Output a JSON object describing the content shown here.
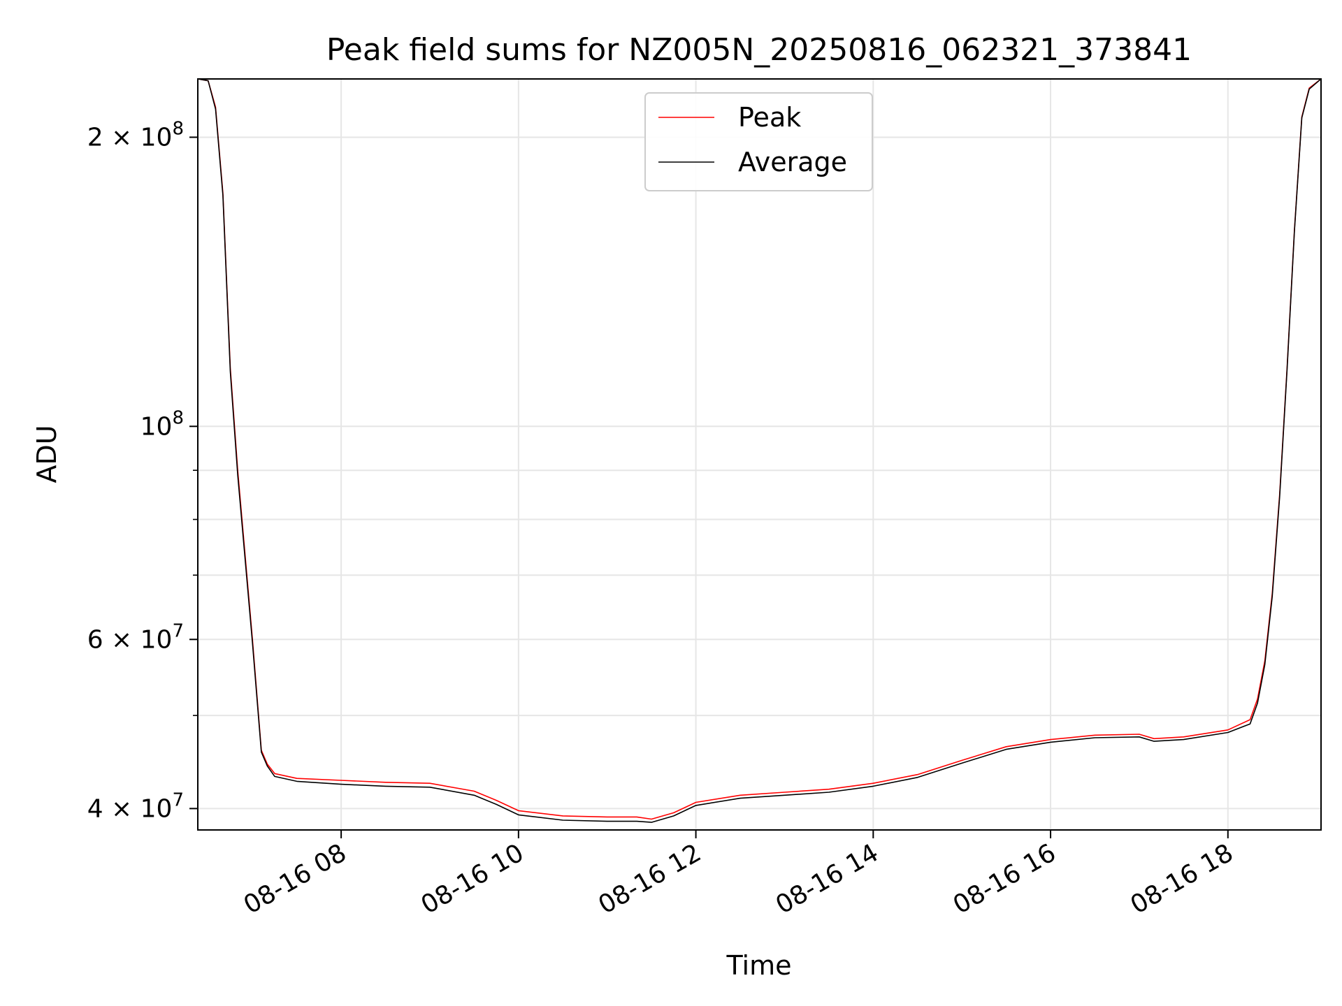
{
  "chart_data": {
    "type": "line",
    "title": "Peak field sums for NZ005N_20250816_062321_373841",
    "xlabel": "Time",
    "ylabel": "ADU",
    "scale_y": "log",
    "grid": true,
    "legend": {
      "placement": "upper-center",
      "entries": [
        "Peak",
        "Average"
      ]
    },
    "xlim": [
      "2025-08-16 06:23",
      "2025-08-16 19:03"
    ],
    "ylim": [
      38000000,
      230000000
    ],
    "x_ticks": [
      {
        "value": "2025-08-16 08:00",
        "label": "08-16 08"
      },
      {
        "value": "2025-08-16 10:00",
        "label": "08-16 10"
      },
      {
        "value": "2025-08-16 12:00",
        "label": "08-16 12"
      },
      {
        "value": "2025-08-16 14:00",
        "label": "08-16 14"
      },
      {
        "value": "2025-08-16 16:00",
        "label": "08-16 16"
      },
      {
        "value": "2025-08-16 18:00",
        "label": "08-16 18"
      }
    ],
    "y_major_ticks": [
      {
        "value": 40000000,
        "base": "4 × 10",
        "exp": "7"
      },
      {
        "value": 60000000,
        "base": "6 × 10",
        "exp": "7"
      },
      {
        "value": 100000000,
        "base": "10",
        "exp": "8"
      },
      {
        "value": 200000000,
        "base": "2 × 10",
        "exp": "8"
      }
    ],
    "y_minor_ticks": [
      50000000,
      70000000,
      80000000,
      90000000
    ],
    "series": [
      {
        "name": "Peak",
        "color": "#ff0000",
        "x": [
          "2025-08-16 06:23",
          "2025-08-16 06:30",
          "2025-08-16 06:35",
          "2025-08-16 06:40",
          "2025-08-16 06:45",
          "2025-08-16 06:50",
          "2025-08-16 07:00",
          "2025-08-16 07:06",
          "2025-08-16 07:10",
          "2025-08-16 07:15",
          "2025-08-16 07:30",
          "2025-08-16 08:00",
          "2025-08-16 08:30",
          "2025-08-16 09:00",
          "2025-08-16 09:30",
          "2025-08-16 09:45",
          "2025-08-16 10:00",
          "2025-08-16 10:30",
          "2025-08-16 11:00",
          "2025-08-16 11:20",
          "2025-08-16 11:30",
          "2025-08-16 11:45",
          "2025-08-16 12:00",
          "2025-08-16 12:30",
          "2025-08-16 13:00",
          "2025-08-16 13:30",
          "2025-08-16 14:00",
          "2025-08-16 14:30",
          "2025-08-16 15:00",
          "2025-08-16 15:30",
          "2025-08-16 16:00",
          "2025-08-16 16:30",
          "2025-08-16 17:00",
          "2025-08-16 17:10",
          "2025-08-16 17:30",
          "2025-08-16 18:00",
          "2025-08-16 18:15",
          "2025-08-16 18:20",
          "2025-08-16 18:25",
          "2025-08-16 18:30",
          "2025-08-16 18:35",
          "2025-08-16 18:40",
          "2025-08-16 18:45",
          "2025-08-16 18:50",
          "2025-08-16 18:55",
          "2025-08-16 19:03"
        ],
        "values": [
          230000000,
          229000000,
          215000000,
          175000000,
          115000000,
          90000000,
          60000000,
          46000000,
          44500000,
          43500000,
          43000000,
          42800000,
          42600000,
          42500000,
          41700000,
          40800000,
          39800000,
          39300000,
          39200000,
          39200000,
          39000000,
          39600000,
          40600000,
          41300000,
          41600000,
          41900000,
          42500000,
          43400000,
          44900000,
          46400000,
          47200000,
          47700000,
          47800000,
          47300000,
          47500000,
          48300000,
          49500000,
          52000000,
          57000000,
          67000000,
          85000000,
          115000000,
          160000000,
          210000000,
          225000000,
          230000000
        ]
      },
      {
        "name": "Average",
        "color": "#000000",
        "x": [
          "2025-08-16 06:23",
          "2025-08-16 06:30",
          "2025-08-16 06:35",
          "2025-08-16 06:40",
          "2025-08-16 06:45",
          "2025-08-16 06:50",
          "2025-08-16 07:00",
          "2025-08-16 07:06",
          "2025-08-16 07:10",
          "2025-08-16 07:15",
          "2025-08-16 07:30",
          "2025-08-16 08:00",
          "2025-08-16 08:30",
          "2025-08-16 09:00",
          "2025-08-16 09:30",
          "2025-08-16 09:45",
          "2025-08-16 10:00",
          "2025-08-16 10:30",
          "2025-08-16 11:00",
          "2025-08-16 11:20",
          "2025-08-16 11:30",
          "2025-08-16 11:45",
          "2025-08-16 12:00",
          "2025-08-16 12:30",
          "2025-08-16 13:00",
          "2025-08-16 13:30",
          "2025-08-16 14:00",
          "2025-08-16 14:30",
          "2025-08-16 15:00",
          "2025-08-16 15:30",
          "2025-08-16 16:00",
          "2025-08-16 16:30",
          "2025-08-16 17:00",
          "2025-08-16 17:10",
          "2025-08-16 17:30",
          "2025-08-16 18:00",
          "2025-08-16 18:15",
          "2025-08-16 18:20",
          "2025-08-16 18:25",
          "2025-08-16 18:30",
          "2025-08-16 18:35",
          "2025-08-16 18:40",
          "2025-08-16 18:45",
          "2025-08-16 18:50",
          "2025-08-16 18:55",
          "2025-08-16 19:03"
        ],
        "values": [
          230000000,
          229000000,
          214000000,
          174000000,
          114000000,
          89000000,
          59500000,
          45800000,
          44300000,
          43200000,
          42700000,
          42400000,
          42200000,
          42100000,
          41300000,
          40400000,
          39400000,
          38900000,
          38800000,
          38800000,
          38700000,
          39300000,
          40300000,
          41000000,
          41300000,
          41600000,
          42200000,
          43100000,
          44600000,
          46100000,
          46900000,
          47400000,
          47500000,
          47000000,
          47200000,
          48000000,
          49000000,
          51500000,
          56500000,
          66500000,
          84500000,
          114500000,
          159500000,
          209500000,
          224500000,
          230000000
        ]
      }
    ]
  }
}
